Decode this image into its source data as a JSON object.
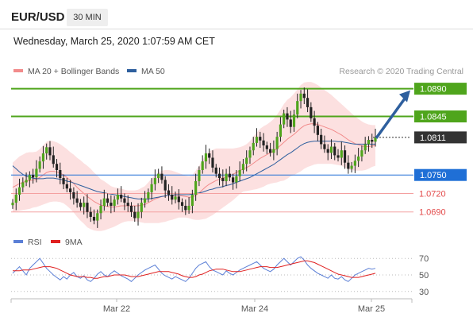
{
  "header": {
    "symbol": "EUR/USD",
    "timeframe": "30 MIN",
    "datetime": "Wednesday, March 25, 2020 1:07:59 AM CET"
  },
  "chart_data": [
    {
      "type": "candlestick",
      "legend": [
        {
          "label": "MA 20 + Bollinger Bands",
          "color": "#f28b8b"
        },
        {
          "label": "MA 50",
          "color": "#2e5f9e"
        }
      ],
      "credit": "Research © 2020 Trading Central",
      "x_ticks": [
        "Mar 22",
        "Mar 24",
        "Mar 25"
      ],
      "ylim": [
        1.066,
        1.0905
      ],
      "last_price": 1.0811,
      "levels": [
        {
          "label": "1.0890",
          "value": 1.089,
          "kind": "resistance",
          "color": "#4fa51c"
        },
        {
          "label": "1.0845",
          "value": 1.0845,
          "kind": "resistance",
          "color": "#4fa51c"
        },
        {
          "label": "1.0811",
          "value": 1.0811,
          "kind": "last",
          "color": "#333333"
        },
        {
          "label": "1.0750",
          "value": 1.075,
          "kind": "pivot",
          "color": "#1f6fd6"
        },
        {
          "label": "1.0720",
          "value": 1.072,
          "kind": "support",
          "color": "#e34a4a"
        },
        {
          "label": "1.0690",
          "value": 1.069,
          "kind": "support",
          "color": "#e34a4a"
        }
      ],
      "closes": [
        1.0705,
        1.0718,
        1.073,
        1.0738,
        1.0742,
        1.075,
        1.0746,
        1.076,
        1.0772,
        1.0785,
        1.0795,
        1.0782,
        1.0768,
        1.0758,
        1.0745,
        1.0735,
        1.0728,
        1.0722,
        1.0712,
        1.0705,
        1.0698,
        1.0705,
        1.069,
        1.0682,
        1.0676,
        1.0688,
        1.07,
        1.0712,
        1.0705,
        1.07,
        1.071,
        1.0718,
        1.0712,
        1.0705,
        1.07,
        1.069,
        1.068,
        1.069,
        1.0705,
        1.0712,
        1.0722,
        1.0735,
        1.0745,
        1.0752,
        1.0742,
        1.0725,
        1.0718,
        1.071,
        1.0715,
        1.0706,
        1.07,
        1.0693,
        1.07,
        1.0718,
        1.074,
        1.0758,
        1.0772,
        1.0785,
        1.0778,
        1.0762,
        1.0752,
        1.0745,
        1.074,
        1.0752,
        1.0746,
        1.0738,
        1.0748,
        1.0758,
        1.0768,
        1.0778,
        1.079,
        1.0802,
        1.0812,
        1.0806,
        1.0798,
        1.0792,
        1.0786,
        1.0792,
        1.0812,
        1.0832,
        1.085,
        1.084,
        1.0828,
        1.0848,
        1.087,
        1.0882,
        1.0875,
        1.086,
        1.0842,
        1.083,
        1.0815,
        1.08,
        1.0792,
        1.0786,
        1.0796,
        1.0782,
        1.0778,
        1.079,
        1.077,
        1.076,
        1.0765,
        1.0773,
        1.078,
        1.079,
        1.08,
        1.0807,
        1.0804,
        1.0811
      ],
      "ma20": [
        1.073,
        1.0733,
        1.0736,
        1.0738,
        1.074,
        1.0741,
        1.0742,
        1.0743,
        1.0746,
        1.075,
        1.0754,
        1.0756,
        1.0756,
        1.0755,
        1.0753,
        1.075,
        1.0746,
        1.0741,
        1.0736,
        1.073,
        1.0725,
        1.072,
        1.0715,
        1.0711,
        1.0707,
        1.0704,
        1.0701,
        1.07,
        1.0699,
        1.0698,
        1.0698,
        1.0699,
        1.07,
        1.07,
        1.07,
        1.07,
        1.07,
        1.07,
        1.0701,
        1.0702,
        1.0705,
        1.0708,
        1.0711,
        1.0713,
        1.0715,
        1.0716,
        1.0717,
        1.0717,
        1.0717,
        1.0717,
        1.0716,
        1.0715,
        1.0714,
        1.0714,
        1.0717,
        1.0721,
        1.0726,
        1.0731,
        1.0735,
        1.0738,
        1.0741,
        1.0743,
        1.0745,
        1.0747,
        1.0749,
        1.0751,
        1.0754,
        1.0757,
        1.076,
        1.0762,
        1.0765,
        1.0769,
        1.0773,
        1.0777,
        1.078,
        1.0783,
        1.0786,
        1.0789,
        1.0793,
        1.0798,
        1.0803,
        1.0808,
        1.0812,
        1.0816,
        1.0821,
        1.0826,
        1.083,
        1.0832,
        1.0833,
        1.0833,
        1.0832,
        1.083,
        1.0828,
        1.0826,
        1.0824,
        1.0821,
        1.0818,
        1.0815,
        1.0811,
        1.0807,
        1.0804,
        1.0801,
        1.0799,
        1.0797,
        1.0796,
        1.0796,
        1.0797,
        1.0798
      ],
      "band_width": [
        0.004,
        0.0042,
        0.0044,
        0.0045,
        0.0046,
        0.0046,
        0.0045,
        0.0045,
        0.0046,
        0.0048,
        0.005,
        0.005,
        0.0049,
        0.0048,
        0.0047,
        0.0046,
        0.0046,
        0.0046,
        0.0047,
        0.0048,
        0.0049,
        0.0049,
        0.005,
        0.0049,
        0.0047,
        0.0045,
        0.0042,
        0.004,
        0.0037,
        0.0034,
        0.0032,
        0.003,
        0.0028,
        0.0026,
        0.0025,
        0.0025,
        0.0025,
        0.0026,
        0.0028,
        0.003,
        0.0033,
        0.0036,
        0.0039,
        0.0041,
        0.0042,
        0.0042,
        0.0041,
        0.004,
        0.0038,
        0.0036,
        0.0035,
        0.0034,
        0.0034,
        0.0036,
        0.004,
        0.0044,
        0.0048,
        0.0052,
        0.0053,
        0.0053,
        0.0052,
        0.005,
        0.0048,
        0.0046,
        0.0044,
        0.0042,
        0.004,
        0.0038,
        0.0037,
        0.0038,
        0.004,
        0.0043,
        0.0046,
        0.0048,
        0.0049,
        0.0049,
        0.005,
        0.0052,
        0.0055,
        0.0058,
        0.0062,
        0.0064,
        0.0064,
        0.0066,
        0.0068,
        0.007,
        0.007,
        0.0069,
        0.0068,
        0.0066,
        0.0064,
        0.0062,
        0.006,
        0.0058,
        0.0056,
        0.0054,
        0.0052,
        0.005,
        0.0049,
        0.0048,
        0.0046,
        0.0044,
        0.0042,
        0.004,
        0.0038,
        0.0036,
        0.0034,
        0.0033
      ],
      "ma50": [
        1.0765,
        1.076,
        1.0755,
        1.0751,
        1.0748,
        1.0746,
        1.0745,
        1.0744,
        1.0744,
        1.0744,
        1.0745,
        1.0745,
        1.0745,
        1.0744,
        1.0743,
        1.0742,
        1.074,
        1.0739,
        1.0737,
        1.0735,
        1.0733,
        1.0731,
        1.0729,
        1.0727,
        1.0725,
        1.0723,
        1.0722,
        1.0721,
        1.072,
        1.0719,
        1.0718,
        1.0717,
        1.0716,
        1.0715,
        1.0714,
        1.0713,
        1.0712,
        1.0711,
        1.0711,
        1.0711,
        1.0711,
        1.0712,
        1.0713,
        1.0714,
        1.0715,
        1.0716,
        1.0717,
        1.0717,
        1.0718,
        1.0718,
        1.0718,
        1.0718,
        1.0718,
        1.0719,
        1.072,
        1.0721,
        1.0722,
        1.0724,
        1.0726,
        1.0727,
        1.0729,
        1.073,
        1.0731,
        1.0733,
        1.0734,
        1.0736,
        1.0738,
        1.074,
        1.0742,
        1.0744,
        1.0746,
        1.0749,
        1.0752,
        1.0755,
        1.0758,
        1.0761,
        1.0764,
        1.0767,
        1.0771,
        1.0775,
        1.0779,
        1.0783,
        1.0786,
        1.079,
        1.0794,
        1.0798,
        1.0801,
        1.0803,
        1.0804,
        1.0805,
        1.0805,
        1.0805,
        1.0805,
        1.0805,
        1.0805,
        1.0805,
        1.0804,
        1.0804,
        1.0803,
        1.0802,
        1.0801,
        1.08,
        1.08,
        1.08,
        1.08,
        1.08,
        1.08,
        1.08
      ],
      "projection": {
        "from": 1.0811,
        "to": 1.089
      }
    },
    {
      "type": "line",
      "legend": [
        {
          "label": "RSI",
          "color": "#5b7fd6"
        },
        {
          "label": "9MA",
          "color": "#e02020"
        }
      ],
      "ylim": [
        25,
        75
      ],
      "y_ticks": [
        "70",
        "50",
        "30"
      ],
      "rsi": [
        52,
        56,
        60,
        55,
        50,
        58,
        62,
        66,
        70,
        64,
        58,
        54,
        50,
        47,
        44,
        48,
        45,
        50,
        53,
        48,
        46,
        49,
        44,
        42,
        46,
        51,
        54,
        50,
        48,
        52,
        55,
        52,
        49,
        47,
        45,
        42,
        46,
        50,
        53,
        56,
        58,
        60,
        62,
        57,
        52,
        49,
        47,
        45,
        48,
        46,
        44,
        42,
        46,
        52,
        58,
        62,
        64,
        66,
        60,
        56,
        54,
        52,
        50,
        55,
        52,
        50,
        53,
        56,
        58,
        60,
        62,
        64,
        66,
        62,
        58,
        56,
        54,
        57,
        62,
        66,
        70,
        66,
        62,
        66,
        70,
        72,
        68,
        62,
        58,
        55,
        52,
        50,
        48,
        46,
        50,
        46,
        45,
        48,
        44,
        42,
        46,
        50,
        52,
        54,
        56,
        58,
        57,
        58
      ],
      "ma9": [
        55,
        55,
        55,
        56,
        56,
        56,
        57,
        58,
        59,
        60,
        60,
        60,
        59,
        58,
        56,
        54,
        52,
        50,
        49,
        48,
        48,
        48,
        47,
        47,
        46,
        46,
        47,
        48,
        48,
        49,
        50,
        50,
        50,
        50,
        49,
        48,
        48,
        48,
        49,
        50,
        51,
        52,
        53,
        54,
        54,
        54,
        54,
        53,
        52,
        51,
        49,
        48,
        47,
        47,
        48,
        50,
        51,
        53,
        55,
        56,
        57,
        57,
        57,
        56,
        55,
        54,
        54,
        54,
        55,
        56,
        57,
        58,
        59,
        60,
        60,
        60,
        59,
        59,
        59,
        60,
        61,
        62,
        63,
        64,
        65,
        66,
        67,
        67,
        66,
        65,
        63,
        61,
        59,
        57,
        55,
        53,
        51,
        50,
        49,
        48,
        47,
        47,
        47,
        48,
        49,
        50,
        51,
        52
      ]
    }
  ]
}
